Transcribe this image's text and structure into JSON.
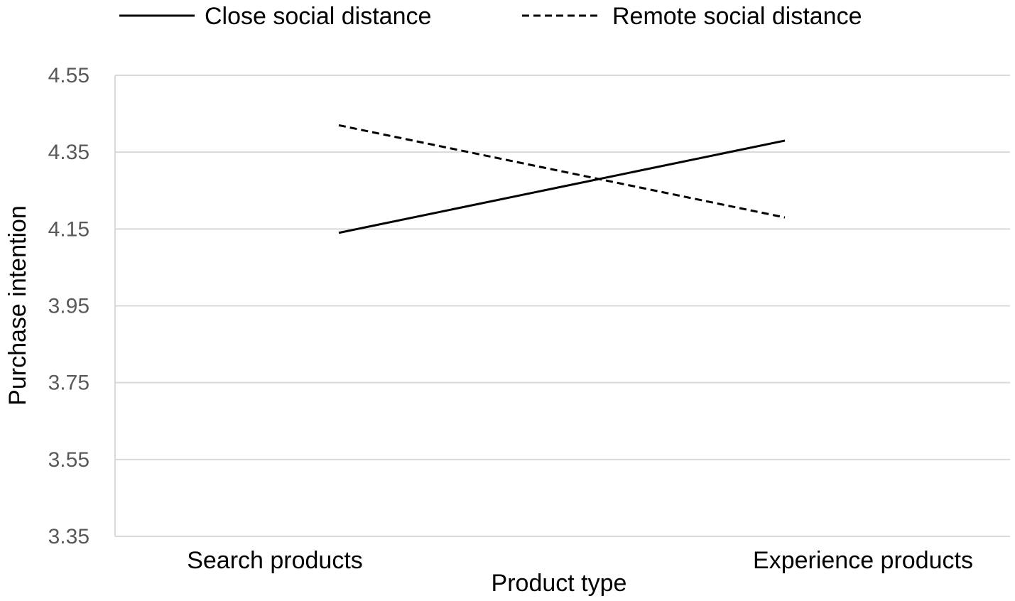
{
  "chart_data": {
    "type": "line",
    "categories": [
      "Search products",
      "Experience products"
    ],
    "series": [
      {
        "name": "Close social distance",
        "values": [
          4.14,
          4.38
        ],
        "style": "solid",
        "color": "#000000"
      },
      {
        "name": "Remote social distance",
        "values": [
          4.42,
          4.18
        ],
        "style": "dashed",
        "color": "#000000"
      }
    ],
    "xlabel": "Product type",
    "ylabel": "Purchase intention",
    "ylim": [
      3.35,
      4.55
    ],
    "yticks": [
      "3.35",
      "3.55",
      "3.75",
      "3.95",
      "4.15",
      "4.35",
      "4.55"
    ],
    "grid": true,
    "legend_position": "top",
    "gridline_color": "#d9d9d9"
  }
}
